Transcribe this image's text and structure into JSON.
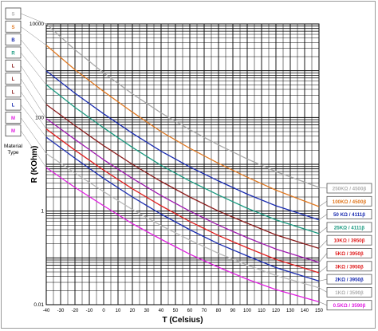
{
  "chart_data": {
    "type": "line",
    "title": "",
    "xlabel": "T (Celsius)",
    "ylabel": "R (KOhm)",
    "x_ticks": [
      "-40",
      "-30",
      "-20",
      "-10",
      "0",
      "10",
      "20",
      "30",
      "40",
      "50",
      "60",
      "70",
      "80",
      "90",
      "100",
      "110",
      "120",
      "130",
      "140",
      "150"
    ],
    "y_ticks": [
      "10000",
      "100",
      "1",
      "0.01"
    ],
    "xlim": [
      -40,
      150
    ],
    "ylim": [
      0.01,
      10000
    ],
    "y_scale": "log",
    "grid": true,
    "legend_position": "right",
    "material_legend": {
      "letters": [
        "S",
        "S",
        "B",
        "R",
        "L",
        "L",
        "L",
        "L",
        "M",
        "M"
      ],
      "caption": "Material\nType"
    },
    "series": [
      {
        "name": "250KΩ / 4500β",
        "color": "#a8a8a8",
        "r25": 250,
        "beta": 4500,
        "x": [
          -40,
          -20,
          0,
          20,
          40,
          60,
          80,
          100,
          120,
          150
        ],
        "values": [
          10000,
          2800,
          900,
          320,
          125,
          55,
          26,
          13,
          7,
          3.2
        ]
      },
      {
        "name": "100KΩ / 4500β",
        "color": "#e07820",
        "r25": 100,
        "beta": 4500,
        "x": [
          -40,
          -20,
          0,
          20,
          40,
          60,
          80,
          100,
          120,
          150
        ],
        "values": [
          3500,
          1050,
          360,
          130,
          50,
          22,
          10.5,
          5.3,
          2.8,
          1.25
        ]
      },
      {
        "name": "50 KΩ / 4111β",
        "color": "#1a2cb0",
        "r25": 50,
        "beta": 4111,
        "x": [
          -40,
          -20,
          0,
          20,
          40,
          60,
          80,
          100,
          120,
          150
        ],
        "values": [
          1000,
          330,
          120,
          46,
          19,
          8.8,
          4.4,
          2.3,
          1.3,
          0.65
        ]
      },
      {
        "name": "25KΩ / 4111β",
        "color": "#1a9a80",
        "r25": 25,
        "beta": 4111,
        "x": [
          -40,
          -20,
          0,
          20,
          40,
          60,
          80,
          100,
          120,
          150
        ],
        "values": [
          500,
          165,
          60,
          23,
          9.5,
          4.4,
          2.2,
          1.15,
          0.65,
          0.33
        ]
      },
      {
        "name": "10KΩ / 3950β",
        "color": "#8a1a1a",
        "r25": 10,
        "beta": 3950,
        "x": [
          -40,
          -20,
          0,
          20,
          40,
          60,
          80,
          100,
          120,
          150
        ],
        "values": [
          190,
          67,
          25,
          10,
          4.3,
          2.0,
          1.0,
          0.55,
          0.31,
          0.16
        ]
      },
      {
        "name": "5KΩ / 3950β",
        "color": "#a01ab0",
        "r25": 5,
        "beta": 3950,
        "x": [
          -40,
          -20,
          0,
          20,
          40,
          60,
          80,
          100,
          120,
          150
        ],
        "values": [
          95,
          34,
          12.5,
          5,
          2.15,
          1.0,
          0.5,
          0.27,
          0.155,
          0.08
        ]
      },
      {
        "name": "3KΩ / 3950β",
        "color": "#e02020",
        "r25": 3,
        "beta": 3950,
        "x": [
          -40,
          -20,
          0,
          20,
          40,
          60,
          80,
          100,
          120,
          150
        ],
        "values": [
          57,
          20,
          7.5,
          3.0,
          1.3,
          0.6,
          0.3,
          0.165,
          0.093,
          0.048
        ]
      },
      {
        "name": "2KΩ / 3950β",
        "color": "#1a2cb0",
        "r25": 2,
        "beta": 3950,
        "x": [
          -40,
          -20,
          0,
          20,
          40,
          60,
          80,
          100,
          120,
          150
        ],
        "values": [
          38,
          13.5,
          5,
          2.0,
          0.86,
          0.4,
          0.2,
          0.11,
          0.062,
          0.032
        ]
      },
      {
        "name": "1KΩ / 3590β",
        "color": "#b8b8b8",
        "r25": 1,
        "beta": 3590,
        "x": [
          -40,
          -20,
          0,
          20,
          40,
          60,
          80,
          100,
          120,
          150
        ],
        "values": [
          17,
          6.5,
          2.6,
          1.08,
          0.49,
          0.24,
          0.125,
          0.07,
          0.042,
          0.023
        ]
      },
      {
        "name": "0.5KΩ / 3590β",
        "color": "#e020e0",
        "r25": 0.5,
        "beta": 3590,
        "x": [
          -40,
          -20,
          0,
          20,
          40,
          60,
          80,
          100,
          120,
          150
        ],
        "values": [
          8.5,
          3.2,
          1.3,
          0.54,
          0.25,
          0.12,
          0.063,
          0.035,
          0.021,
          0.0115
        ]
      }
    ]
  },
  "material_colors": [
    "#b0b0b0",
    "#e07820",
    "#1a2cb0",
    "#1a9a80",
    "#8a1a1a",
    "#8a1a1a",
    "#8a1a1a",
    "#1a2cb0",
    "#e020e0",
    "#e020e0"
  ],
  "legend_label_colors": [
    "#b0b0b0",
    "#e07820",
    "#1a2cb0",
    "#1a9a80",
    "#e02020",
    "#e02020",
    "#e02020",
    "#1a2cb0",
    "#b0b0b0",
    "#e020e0"
  ]
}
